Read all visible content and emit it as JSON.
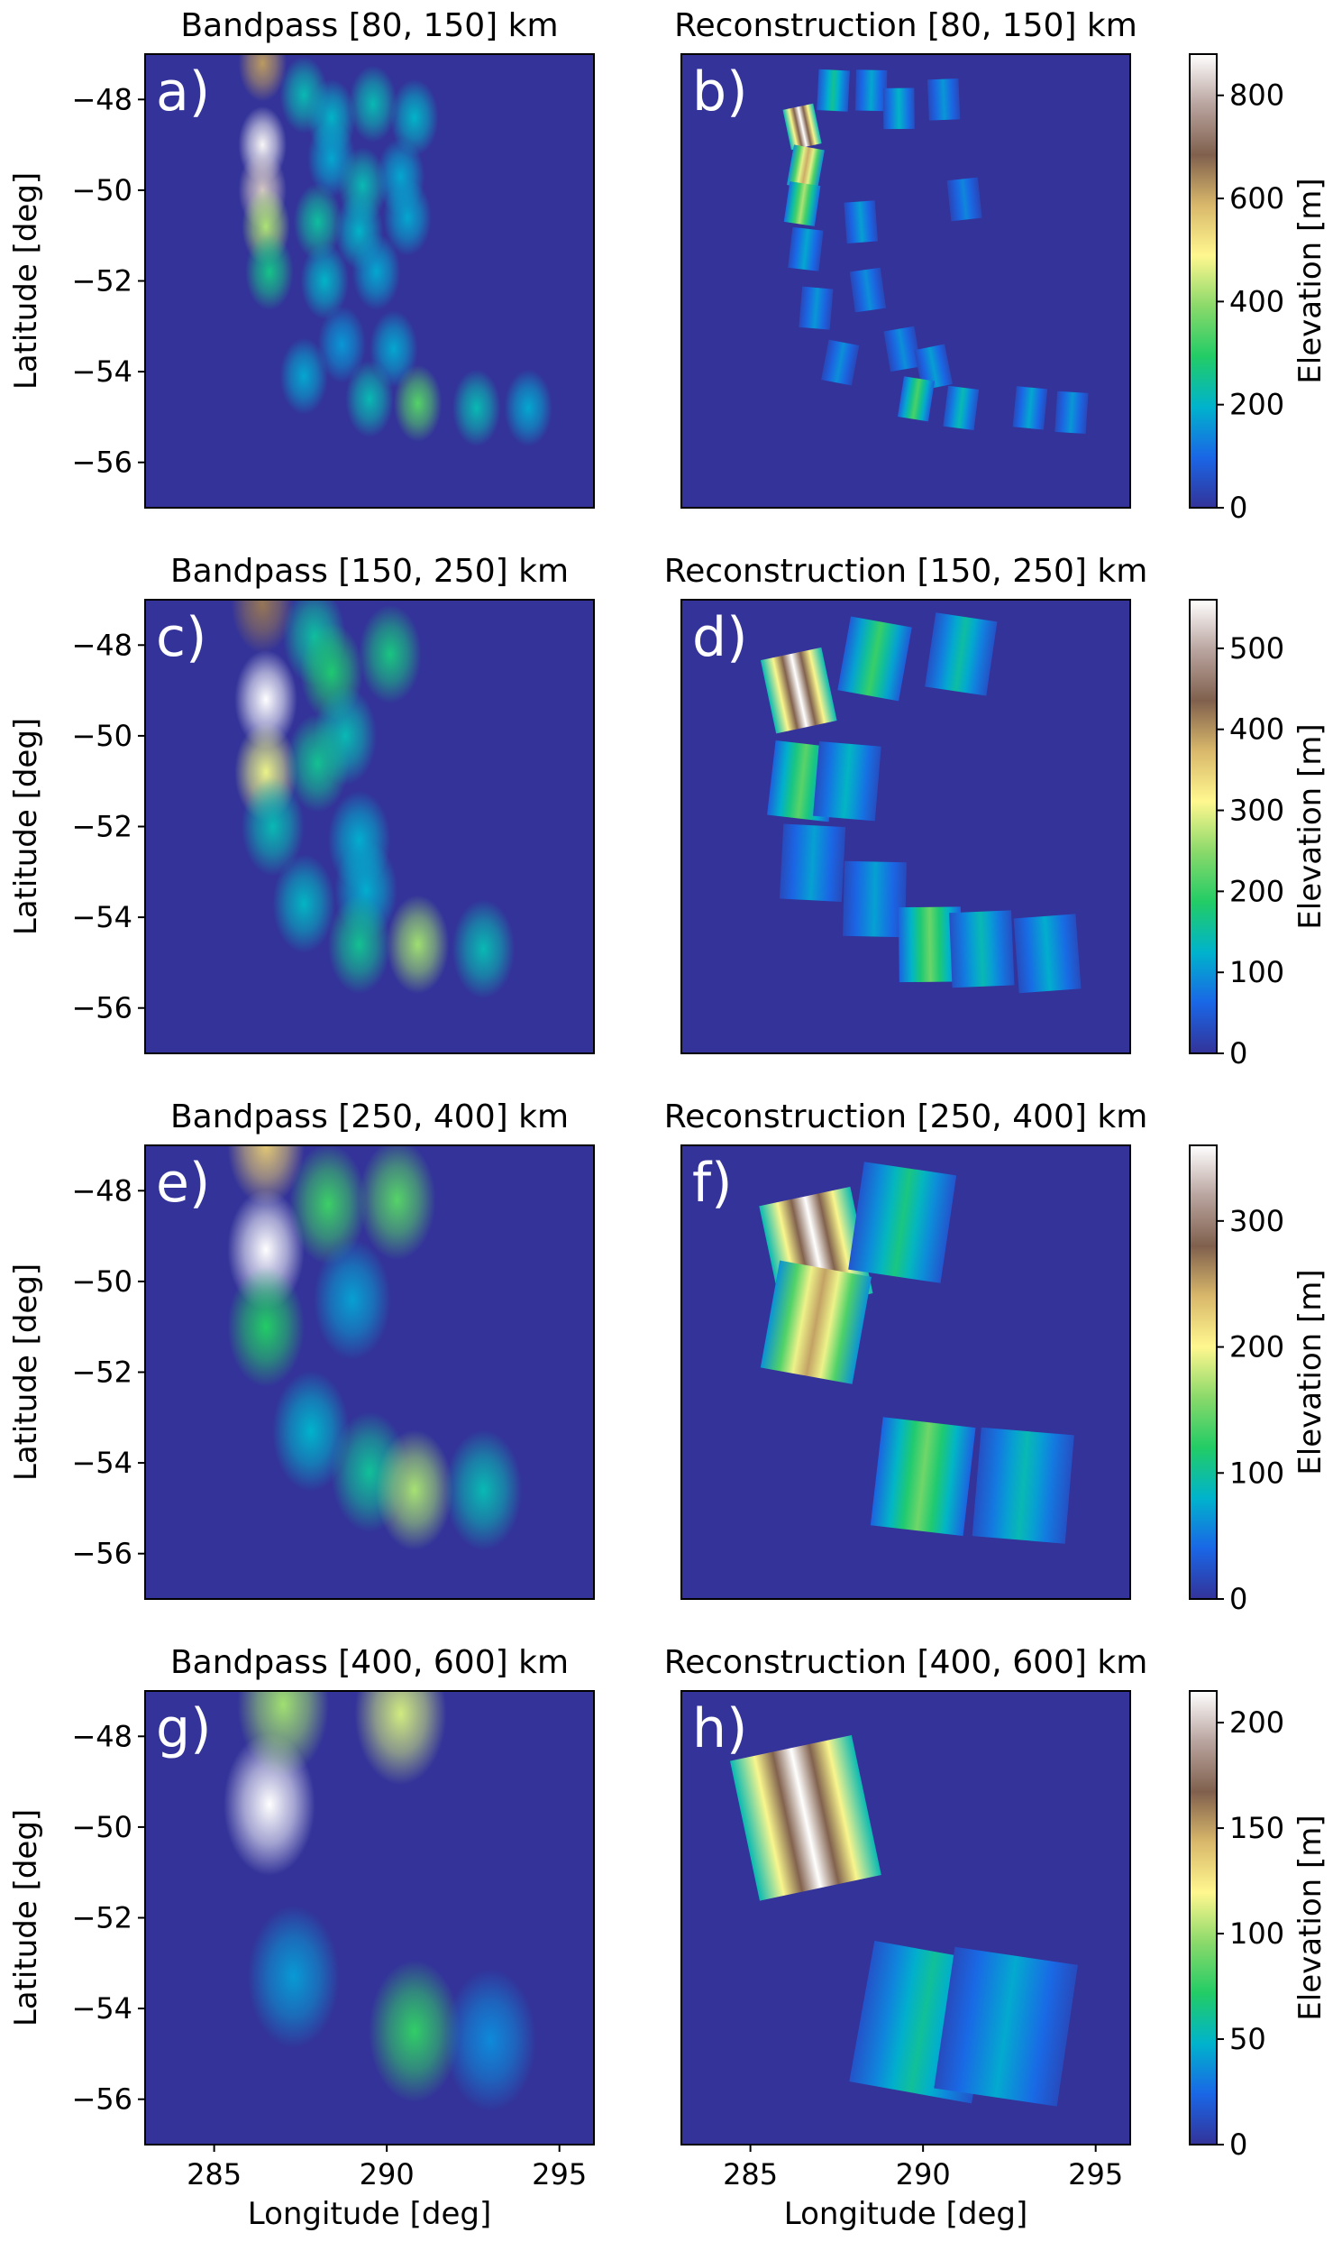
{
  "figure": {
    "colors": {
      "background_low": "#333399",
      "cmap_stops": [
        "#333399",
        "#1a66e6",
        "#00b3cc",
        "#22cc66",
        "#8ad96a",
        "#fff78f",
        "#d9b86b",
        "#80604d",
        "#b9a49f",
        "#ffffff"
      ]
    }
  },
  "chart_data": [
    {
      "type": "heatmap",
      "panel": "a)",
      "title": "Bandpass [80, 150] km",
      "xlabel": "",
      "ylabel": "Latitude [deg]",
      "xlim": [
        283,
        296
      ],
      "ylim": [
        -57,
        -47
      ],
      "yticks": [
        -48,
        -50,
        -52,
        -54,
        -56
      ],
      "ytick_labels": [
        "−48",
        "−50",
        "−52",
        "−54",
        "−56"
      ],
      "vmax": 880,
      "blobs": [
        {
          "lon": 286.4,
          "lat": -47.2,
          "value": 620
        },
        {
          "lon": 286.4,
          "lat": -49.0,
          "value": 870
        },
        {
          "lon": 286.4,
          "lat": -50.0,
          "value": 820
        },
        {
          "lon": 286.5,
          "lat": -50.8,
          "value": 420
        },
        {
          "lon": 286.6,
          "lat": -51.8,
          "value": 260
        },
        {
          "lon": 287.6,
          "lat": -47.9,
          "value": 220
        },
        {
          "lon": 288.4,
          "lat": -48.4,
          "value": 200
        },
        {
          "lon": 289.6,
          "lat": -48.1,
          "value": 220
        },
        {
          "lon": 290.8,
          "lat": -48.4,
          "value": 200
        },
        {
          "lon": 288.4,
          "lat": -49.3,
          "value": 180
        },
        {
          "lon": 289.3,
          "lat": -49.9,
          "value": 220
        },
        {
          "lon": 290.4,
          "lat": -49.7,
          "value": 180
        },
        {
          "lon": 288.0,
          "lat": -50.7,
          "value": 240
        },
        {
          "lon": 289.2,
          "lat": -50.9,
          "value": 200
        },
        {
          "lon": 290.6,
          "lat": -50.6,
          "value": 180
        },
        {
          "lon": 288.2,
          "lat": -52.0,
          "value": 200
        },
        {
          "lon": 289.7,
          "lat": -51.8,
          "value": 180
        },
        {
          "lon": 288.7,
          "lat": -53.4,
          "value": 160
        },
        {
          "lon": 290.2,
          "lat": -53.5,
          "value": 180
        },
        {
          "lon": 287.6,
          "lat": -54.1,
          "value": 180
        },
        {
          "lon": 289.5,
          "lat": -54.6,
          "value": 220
        },
        {
          "lon": 290.9,
          "lat": -54.7,
          "value": 340
        },
        {
          "lon": 292.6,
          "lat": -54.8,
          "value": 220
        },
        {
          "lon": 294.1,
          "lat": -54.8,
          "value": 180
        }
      ]
    },
    {
      "type": "heatmap",
      "panel": "b)",
      "title": "Reconstruction [80, 150] km",
      "xlabel": "",
      "colorbar_label": "Elevation [m]",
      "colorbar_ticks": [
        0,
        200,
        400,
        600,
        800
      ],
      "vmax": 880,
      "tiles": [
        {
          "lon": 286.5,
          "lat": -48.6,
          "value": 880
        },
        {
          "lon": 286.6,
          "lat": -49.5,
          "value": 600
        },
        {
          "lon": 286.5,
          "lat": -50.3,
          "value": 420
        },
        {
          "lon": 286.6,
          "lat": -51.3,
          "value": 180
        },
        {
          "lon": 286.9,
          "lat": -52.6,
          "value": 160
        },
        {
          "lon": 287.4,
          "lat": -47.8,
          "value": 250
        },
        {
          "lon": 288.5,
          "lat": -47.8,
          "value": 180
        },
        {
          "lon": 289.3,
          "lat": -48.2,
          "value": 200
        },
        {
          "lon": 290.6,
          "lat": -48.0,
          "value": 160
        },
        {
          "lon": 288.2,
          "lat": -50.7,
          "value": 170
        },
        {
          "lon": 291.2,
          "lat": -50.2,
          "value": 140
        },
        {
          "lon": 288.4,
          "lat": -52.2,
          "value": 150
        },
        {
          "lon": 289.4,
          "lat": -53.5,
          "value": 150
        },
        {
          "lon": 290.3,
          "lat": -53.9,
          "value": 170
        },
        {
          "lon": 287.6,
          "lat": -53.8,
          "value": 150
        },
        {
          "lon": 289.8,
          "lat": -54.6,
          "value": 330
        },
        {
          "lon": 291.1,
          "lat": -54.8,
          "value": 220
        },
        {
          "lon": 293.1,
          "lat": -54.8,
          "value": 180
        },
        {
          "lon": 294.3,
          "lat": -54.9,
          "value": 160
        }
      ]
    },
    {
      "type": "heatmap",
      "panel": "c)",
      "title": "Bandpass [150, 250] km",
      "xlabel": "",
      "ylabel": "Latitude [deg]",
      "xlim": [
        283,
        296
      ],
      "ylim": [
        -57,
        -47
      ],
      "yticks": [
        -48,
        -50,
        -52,
        -54,
        -56
      ],
      "ytick_labels": [
        "−48",
        "−50",
        "−52",
        "−54",
        "−56"
      ],
      "vmax": 560,
      "blobs": [
        {
          "lon": 286.4,
          "lat": -47.1,
          "value": 420
        },
        {
          "lon": 286.5,
          "lat": -49.2,
          "value": 560
        },
        {
          "lon": 286.5,
          "lat": -50.8,
          "value": 300
        },
        {
          "lon": 286.7,
          "lat": -52.0,
          "value": 140
        },
        {
          "lon": 287.9,
          "lat": -47.8,
          "value": 150
        },
        {
          "lon": 288.4,
          "lat": -48.6,
          "value": 180
        },
        {
          "lon": 290.1,
          "lat": -48.2,
          "value": 170
        },
        {
          "lon": 288.8,
          "lat": -50.0,
          "value": 140
        },
        {
          "lon": 288.0,
          "lat": -50.6,
          "value": 160
        },
        {
          "lon": 289.2,
          "lat": -52.3,
          "value": 120
        },
        {
          "lon": 287.6,
          "lat": -53.7,
          "value": 130
        },
        {
          "lon": 289.4,
          "lat": -53.4,
          "value": 120
        },
        {
          "lon": 290.9,
          "lat": -54.6,
          "value": 260
        },
        {
          "lon": 289.2,
          "lat": -54.6,
          "value": 160
        },
        {
          "lon": 292.8,
          "lat": -54.7,
          "value": 140
        }
      ]
    },
    {
      "type": "heatmap",
      "panel": "d)",
      "title": "Reconstruction [150, 250] km",
      "xlabel": "",
      "colorbar_label": "Elevation [m]",
      "colorbar_ticks": [
        0,
        100,
        200,
        300,
        400,
        500
      ],
      "vmax": 560,
      "tiles": [
        {
          "lon": 286.4,
          "lat": -49.0,
          "value": 560
        },
        {
          "lon": 288.6,
          "lat": -48.3,
          "value": 200
        },
        {
          "lon": 291.1,
          "lat": -48.2,
          "value": 150
        },
        {
          "lon": 286.5,
          "lat": -51.0,
          "value": 220
        },
        {
          "lon": 287.8,
          "lat": -51.0,
          "value": 130
        },
        {
          "lon": 286.8,
          "lat": -52.8,
          "value": 110
        },
        {
          "lon": 288.6,
          "lat": -53.6,
          "value": 110
        },
        {
          "lon": 290.2,
          "lat": -54.6,
          "value": 230
        },
        {
          "lon": 291.7,
          "lat": -54.7,
          "value": 140
        },
        {
          "lon": 293.6,
          "lat": -54.8,
          "value": 120
        }
      ]
    },
    {
      "type": "heatmap",
      "panel": "e)",
      "title": "Bandpass [250, 400] km",
      "xlabel": "",
      "ylabel": "Latitude [deg]",
      "xlim": [
        283,
        296
      ],
      "ylim": [
        -57,
        -47
      ],
      "yticks": [
        -48,
        -50,
        -52,
        -54,
        -56
      ],
      "ytick_labels": [
        "−48",
        "−50",
        "−52",
        "−54",
        "−56"
      ],
      "vmax": 360,
      "blobs": [
        {
          "lon": 286.5,
          "lat": -47.0,
          "value": 230
        },
        {
          "lon": 286.5,
          "lat": -49.3,
          "value": 360
        },
        {
          "lon": 286.5,
          "lat": -51.0,
          "value": 120
        },
        {
          "lon": 288.3,
          "lat": -48.3,
          "value": 130
        },
        {
          "lon": 290.3,
          "lat": -48.2,
          "value": 140
        },
        {
          "lon": 289.0,
          "lat": -50.4,
          "value": 70
        },
        {
          "lon": 287.8,
          "lat": -53.3,
          "value": 80
        },
        {
          "lon": 289.5,
          "lat": -54.2,
          "value": 100
        },
        {
          "lon": 290.8,
          "lat": -54.6,
          "value": 170
        },
        {
          "lon": 292.8,
          "lat": -54.6,
          "value": 90
        }
      ]
    },
    {
      "type": "heatmap",
      "panel": "f)",
      "title": "Reconstruction [250, 400] km",
      "xlabel": "",
      "colorbar_label": "Elevation [m]",
      "colorbar_ticks": [
        0,
        100,
        200,
        300
      ],
      "vmax": 360,
      "tiles": [
        {
          "lon": 286.9,
          "lat": -49.3,
          "value": 360
        },
        {
          "lon": 286.9,
          "lat": -50.9,
          "value": 250
        },
        {
          "lon": 289.4,
          "lat": -48.7,
          "value": 110
        },
        {
          "lon": 290.0,
          "lat": -54.3,
          "value": 150
        },
        {
          "lon": 292.9,
          "lat": -54.5,
          "value": 90
        }
      ]
    },
    {
      "type": "heatmap",
      "panel": "g)",
      "title": "Bandpass [400, 600] km",
      "xlabel": "Longitude [deg]",
      "ylabel": "Latitude [deg]",
      "xlim": [
        283,
        296
      ],
      "ylim": [
        -57,
        -47
      ],
      "xticks": [
        285,
        290,
        295
      ],
      "yticks": [
        -48,
        -50,
        -52,
        -54,
        -56
      ],
      "ytick_labels": [
        "−48",
        "−50",
        "−52",
        "−54",
        "−56"
      ],
      "vmax": 215,
      "blobs": [
        {
          "lon": 286.6,
          "lat": -49.5,
          "value": 215
        },
        {
          "lon": 287.0,
          "lat": -47.3,
          "value": 100
        },
        {
          "lon": 290.4,
          "lat": -47.5,
          "value": 110
        },
        {
          "lon": 287.3,
          "lat": -53.3,
          "value": 40
        },
        {
          "lon": 290.8,
          "lat": -54.5,
          "value": 75
        },
        {
          "lon": 293.0,
          "lat": -54.7,
          "value": 35
        }
      ]
    },
    {
      "type": "heatmap",
      "panel": "h)",
      "title": "Reconstruction [400, 600] km",
      "xlabel": "Longitude [deg]",
      "xticks": [
        285,
        290,
        295
      ],
      "colorbar_label": "Elevation [m]",
      "colorbar_ticks": [
        0,
        50,
        100,
        150,
        200
      ],
      "vmax": 215,
      "tiles": [
        {
          "lon": 286.6,
          "lat": -49.8,
          "value": 215
        },
        {
          "lon": 290.0,
          "lat": -54.3,
          "value": 60
        },
        {
          "lon": 292.4,
          "lat": -54.4,
          "value": 45
        }
      ]
    }
  ]
}
